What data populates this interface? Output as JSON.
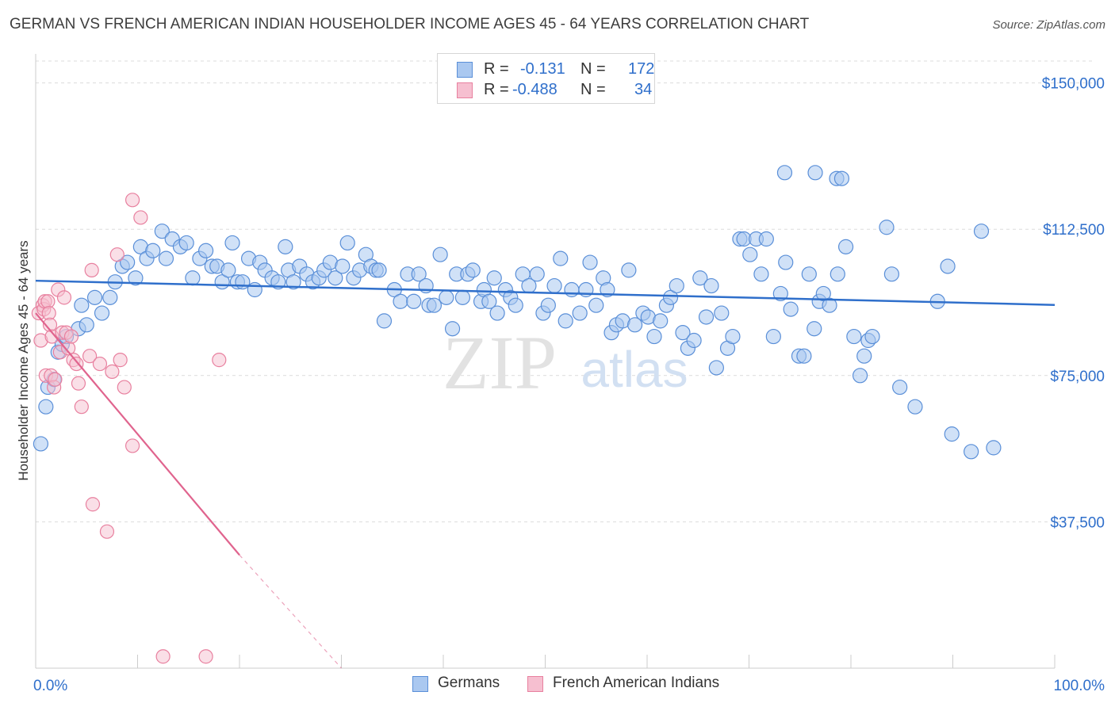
{
  "title": "GERMAN VS FRENCH AMERICAN INDIAN HOUSEHOLDER INCOME AGES 45 - 64 YEARS CORRELATION CHART",
  "source": "Source: ZipAtlas.com",
  "watermark": {
    "zip": "ZIP",
    "atlas": "atlas"
  },
  "legend": {
    "rows": [
      {
        "r_label": "R =",
        "r_value": "-0.131",
        "n_label": "N =",
        "n_value": "172",
        "color": "#6fa3e8"
      },
      {
        "r_label": "R =",
        "r_value": "-0.488",
        "n_label": "N =",
        "n_value": "34",
        "color": "#f08aaa"
      }
    ]
  },
  "bottom_legend": [
    {
      "label": "Germans",
      "color": "#6fa3e8"
    },
    {
      "label": "French American Indians",
      "color": "#f08aaa"
    }
  ],
  "colors": {
    "blue_fill": "#aac8f0",
    "blue_stroke": "#5a8fd8",
    "blue_line": "#2f6fcb",
    "pink_fill": "#f6bfd0",
    "pink_stroke": "#e8809f",
    "pink_line": "#e0648e",
    "axis_text": "#2f6fcb",
    "grid": "#dcdcdc"
  },
  "chart_data": {
    "type": "scatter",
    "title": "GERMAN VS FRENCH AMERICAN INDIAN HOUSEHOLDER INCOME AGES 45 - 64 YEARS CORRELATION CHART",
    "xlabel": "",
    "ylabel": "Householder Income Ages 45 - 64 years",
    "xlim": [
      0,
      100
    ],
    "ylim": [
      0,
      155000
    ],
    "x_tick_labels": [
      "0.0%",
      "100.0%"
    ],
    "y_ticks": [
      37500,
      75000,
      112500,
      150000
    ],
    "y_tick_labels": [
      "$37,500",
      "$75,000",
      "$112,500",
      "$150,000"
    ],
    "series": [
      {
        "name": "Germans",
        "r": -0.131,
        "n": 172,
        "trend": {
          "x": [
            0,
            100
          ],
          "y": [
            99300,
            93100
          ]
        },
        "points": [
          [
            0.5,
            57500
          ],
          [
            1,
            67000
          ],
          [
            1.2,
            72000
          ],
          [
            1.8,
            74000
          ],
          [
            2.2,
            81000
          ],
          [
            2.6,
            83000
          ],
          [
            3,
            85000
          ],
          [
            4.2,
            87000
          ],
          [
            4.5,
            93000
          ],
          [
            5,
            88000
          ],
          [
            5.8,
            95000
          ],
          [
            6.5,
            91000
          ],
          [
            7.3,
            95000
          ],
          [
            7.8,
            99000
          ],
          [
            8.5,
            103000
          ],
          [
            9,
            104000
          ],
          [
            9.8,
            100000
          ],
          [
            10.3,
            108000
          ],
          [
            10.9,
            105000
          ],
          [
            11.5,
            107000
          ],
          [
            12.4,
            112000
          ],
          [
            12.8,
            105000
          ],
          [
            13.4,
            110000
          ],
          [
            14.2,
            108000
          ],
          [
            14.8,
            109000
          ],
          [
            15.4,
            100000
          ],
          [
            16.1,
            105000
          ],
          [
            16.7,
            107000
          ],
          [
            17.3,
            103000
          ],
          [
            17.8,
            103000
          ],
          [
            18.3,
            99000
          ],
          [
            18.9,
            102000
          ],
          [
            19.3,
            109000
          ],
          [
            19.8,
            99000
          ],
          [
            20.3,
            99000
          ],
          [
            20.9,
            105000
          ],
          [
            21.5,
            97000
          ],
          [
            22,
            104000
          ],
          [
            22.5,
            102000
          ],
          [
            23.2,
            100000
          ],
          [
            23.8,
            99000
          ],
          [
            24.5,
            108000
          ],
          [
            24.8,
            102000
          ],
          [
            25.3,
            99000
          ],
          [
            25.9,
            103000
          ],
          [
            26.6,
            101000
          ],
          [
            27.2,
            99000
          ],
          [
            27.8,
            100000
          ],
          [
            28.3,
            102000
          ],
          [
            28.9,
            104000
          ],
          [
            29.4,
            100000
          ],
          [
            30.1,
            103000
          ],
          [
            30.6,
            109000
          ],
          [
            31.2,
            100000
          ],
          [
            31.8,
            102000
          ],
          [
            32.4,
            106000
          ],
          [
            32.9,
            103000
          ],
          [
            33.4,
            102000
          ],
          [
            33.7,
            102000
          ],
          [
            34.2,
            89000
          ],
          [
            35.2,
            97000
          ],
          [
            35.8,
            94000
          ],
          [
            36.5,
            101000
          ],
          [
            37.1,
            94000
          ],
          [
            37.6,
            101000
          ],
          [
            38.3,
            98000
          ],
          [
            38.6,
            93000
          ],
          [
            39.1,
            93000
          ],
          [
            39.7,
            106000
          ],
          [
            40.3,
            95000
          ],
          [
            40.9,
            87000
          ],
          [
            41.3,
            101000
          ],
          [
            41.9,
            95000
          ],
          [
            42.4,
            101000
          ],
          [
            42.9,
            102000
          ],
          [
            43.7,
            94000
          ],
          [
            44,
            97000
          ],
          [
            44.5,
            94000
          ],
          [
            45,
            100000
          ],
          [
            45.3,
            91000
          ],
          [
            46.1,
            97000
          ],
          [
            46.6,
            95000
          ],
          [
            47.1,
            93000
          ],
          [
            47.8,
            101000
          ],
          [
            48.4,
            98000
          ],
          [
            49.2,
            101000
          ],
          [
            49.8,
            91000
          ],
          [
            50.3,
            93000
          ],
          [
            50.9,
            98000
          ],
          [
            51.5,
            105000
          ],
          [
            52,
            89000
          ],
          [
            52.6,
            97000
          ],
          [
            53.4,
            91000
          ],
          [
            54,
            97000
          ],
          [
            54.4,
            104000
          ],
          [
            55,
            93000
          ],
          [
            55.7,
            100000
          ],
          [
            56.1,
            97000
          ],
          [
            56.5,
            86000
          ],
          [
            57,
            88000
          ],
          [
            57.6,
            89000
          ],
          [
            58.2,
            102000
          ],
          [
            58.8,
            88000
          ],
          [
            59.6,
            91000
          ],
          [
            60.1,
            90000
          ],
          [
            60.7,
            85000
          ],
          [
            61.3,
            89000
          ],
          [
            61.9,
            93000
          ],
          [
            62.3,
            95000
          ],
          [
            62.9,
            98000
          ],
          [
            63.5,
            86000
          ],
          [
            64,
            82000
          ],
          [
            64.6,
            84000
          ],
          [
            65.2,
            100000
          ],
          [
            65.8,
            90000
          ],
          [
            66.3,
            98000
          ],
          [
            66.8,
            77000
          ],
          [
            67.3,
            91000
          ],
          [
            67.9,
            82000
          ],
          [
            68.4,
            85000
          ],
          [
            69.1,
            110000
          ],
          [
            69.5,
            110000
          ],
          [
            70.1,
            106000
          ],
          [
            70.7,
            110000
          ],
          [
            71.2,
            101000
          ],
          [
            71.7,
            110000
          ],
          [
            72.4,
            85000
          ],
          [
            73.1,
            96000
          ],
          [
            73.6,
            104000
          ],
          [
            74.1,
            92000
          ],
          [
            74.9,
            80000
          ],
          [
            75.4,
            80000
          ],
          [
            75.9,
            101000
          ],
          [
            76.4,
            87000
          ],
          [
            76.9,
            94000
          ],
          [
            77.3,
            96000
          ],
          [
            77.9,
            93000
          ],
          [
            78.7,
            101000
          ],
          [
            79.5,
            108000
          ],
          [
            80.3,
            85000
          ],
          [
            80.9,
            75000
          ],
          [
            81.3,
            80000
          ],
          [
            81.7,
            84000
          ],
          [
            82.1,
            85000
          ],
          [
            73.5,
            127000
          ],
          [
            76.5,
            127000
          ],
          [
            78.6,
            125500
          ],
          [
            79.1,
            125500
          ],
          [
            83.5,
            113000
          ],
          [
            84,
            101000
          ],
          [
            84.8,
            72000
          ],
          [
            86.3,
            67000
          ],
          [
            88.5,
            94000
          ],
          [
            89.5,
            103000
          ],
          [
            89.9,
            60000
          ],
          [
            91.8,
            55500
          ],
          [
            92.8,
            112000
          ],
          [
            94,
            56500
          ]
        ]
      },
      {
        "name": "French American Indians",
        "r": -0.488,
        "n": 34,
        "trend": {
          "x": [
            0,
            20
          ],
          "y": [
            91000,
            29000
          ]
        },
        "trend_dashed": {
          "x": [
            20,
            30
          ],
          "y": [
            29000,
            -2000
          ]
        },
        "points": [
          [
            0.3,
            91000
          ],
          [
            0.5,
            84000
          ],
          [
            0.7,
            93000
          ],
          [
            0.8,
            92000
          ],
          [
            0.9,
            94000
          ],
          [
            1,
            75000
          ],
          [
            1.2,
            94000
          ],
          [
            1.3,
            91000
          ],
          [
            1.4,
            88000
          ],
          [
            1.5,
            75000
          ],
          [
            1.6,
            85000
          ],
          [
            1.8,
            72000
          ],
          [
            1.9,
            74000
          ],
          [
            2.2,
            97000
          ],
          [
            2.4,
            81000
          ],
          [
            2.6,
            86000
          ],
          [
            2.8,
            95000
          ],
          [
            3,
            86000
          ],
          [
            3.2,
            82000
          ],
          [
            3.5,
            85000
          ],
          [
            3.7,
            79000
          ],
          [
            4,
            78000
          ],
          [
            4.2,
            73000
          ],
          [
            4.5,
            67000
          ],
          [
            5.3,
            80000
          ],
          [
            6.3,
            78000
          ],
          [
            7.5,
            76000
          ],
          [
            8.3,
            79000
          ],
          [
            8.7,
            72000
          ],
          [
            9.5,
            57000
          ],
          [
            5.6,
            42000
          ],
          [
            7,
            35000
          ],
          [
            12.5,
            3000
          ],
          [
            16.7,
            3000
          ]
        ]
      }
    ],
    "extra_points": {
      "pink": [
        [
          5.5,
          102000
        ],
        [
          8,
          106000
        ],
        [
          9.5,
          120000
        ],
        [
          10.3,
          115500
        ],
        [
          18,
          79000
        ]
      ]
    }
  }
}
